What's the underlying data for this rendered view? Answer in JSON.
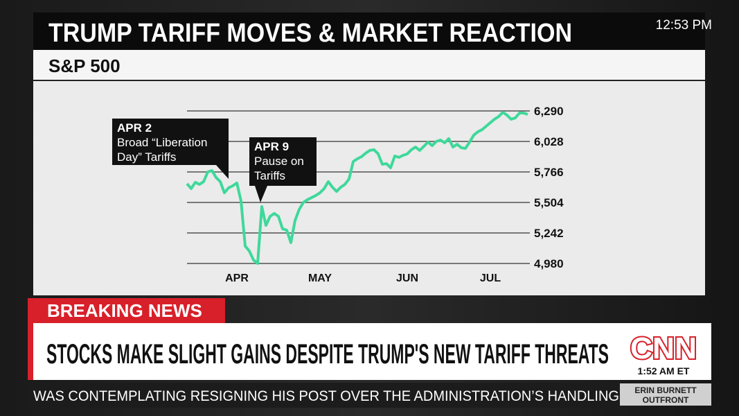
{
  "header": {
    "title": "TRUMP TARIFF MOVES & MARKET REACTION",
    "clock": "12:53 PM"
  },
  "chart_data": {
    "type": "line",
    "title": "S&P 500",
    "categories": [
      null,
      null,
      null,
      null,
      null,
      null,
      null,
      null,
      null,
      null,
      null,
      null,
      "APR",
      null,
      null,
      null,
      null,
      null,
      null,
      null,
      null,
      null,
      null,
      null,
      null,
      null,
      null,
      null,
      null,
      null,
      null,
      null,
      "MAY",
      null,
      null,
      null,
      null,
      null,
      null,
      null,
      null,
      null,
      null,
      null,
      null,
      null,
      null,
      null,
      null,
      null,
      null,
      null,
      null,
      "JUN",
      null,
      null,
      null,
      null,
      null,
      null,
      null,
      null,
      null,
      null,
      null,
      null,
      null,
      null,
      null,
      null,
      null,
      null,
      null,
      "JUL",
      null,
      null,
      null,
      null,
      null,
      null,
      null,
      null,
      null
    ],
    "values": [
      5665,
      5623,
      5677,
      5659,
      5683,
      5766,
      5778,
      5718,
      5683,
      5587,
      5629,
      5647,
      5671,
      5516,
      5129,
      5087,
      5010,
      4980,
      5468,
      5307,
      5385,
      5409,
      5385,
      5278,
      5266,
      5159,
      5349,
      5444,
      5504,
      5528,
      5546,
      5564,
      5587,
      5623,
      5683,
      5635,
      5599,
      5635,
      5659,
      5706,
      5855,
      5879,
      5897,
      5927,
      5951,
      5957,
      5921,
      5832,
      5837,
      5802,
      5903,
      5891,
      5909,
      5921,
      5957,
      5980,
      5951,
      5986,
      6022,
      5992,
      6028,
      6040,
      6016,
      6052,
      5980,
      6004,
      5974,
      5968,
      6022,
      6082,
      6111,
      6129,
      6159,
      6189,
      6219,
      6242,
      6278,
      6254,
      6219,
      6230,
      6272,
      6272,
      6260
    ],
    "color": "#3fd89b",
    "ylim": [
      4980,
      6290
    ],
    "yticks": [
      {
        "value": 4980,
        "label": "4,980"
      },
      {
        "value": 5242,
        "label": "5,242"
      },
      {
        "value": 5504,
        "label": "5,504"
      },
      {
        "value": 5766,
        "label": "5,766"
      },
      {
        "value": 6028,
        "label": "6,028"
      },
      {
        "value": 6290,
        "label": "6,290"
      }
    ],
    "grid": true,
    "annotations": [
      {
        "label": "APR 2",
        "text": [
          "Broad “Liberation",
          "Day” Tariffs"
        ]
      },
      {
        "label": "APR 9",
        "text": [
          "Pause on",
          "Tariffs"
        ]
      }
    ]
  },
  "lower_third": {
    "banner": "BREAKING NEWS",
    "headline": "STOCKS MAKE SLIGHT GAINS DESPITE TRUMP'S NEW TARIFF THREATS",
    "logo": "CNN",
    "time": "1:52 AM ET",
    "ticker": "WAS CONTEMPLATING RESIGNING HIS POST OVER THE ADMINISTRATION’S HANDLING",
    "show": [
      "ERIN BURNETT",
      "OUTFRONT"
    ]
  }
}
